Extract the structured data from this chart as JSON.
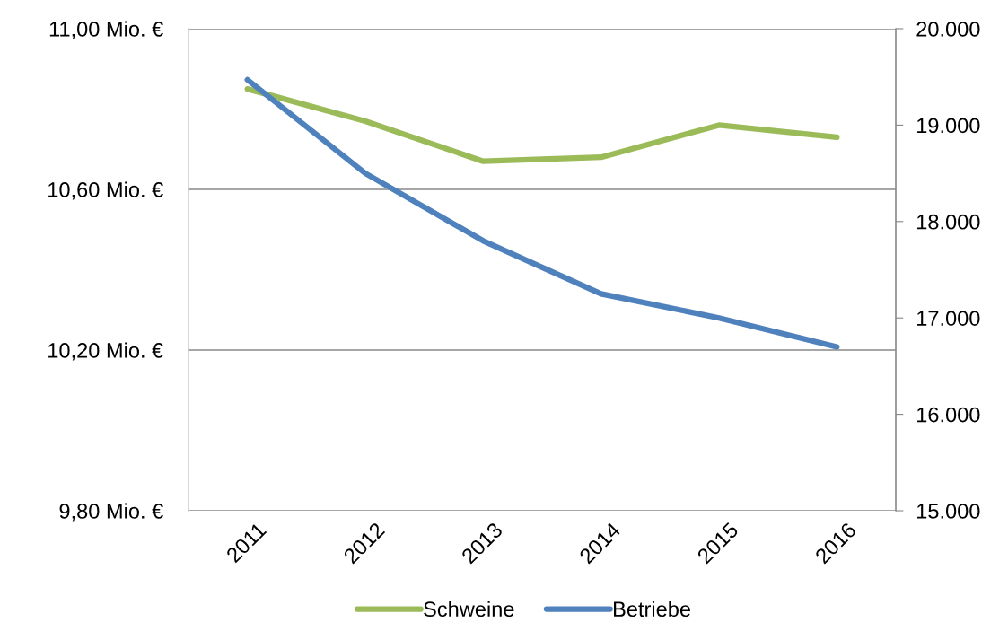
{
  "chart_data": {
    "type": "line",
    "categories": [
      "2011",
      "2012",
      "2013",
      "2014",
      "2015",
      "2016"
    ],
    "series": [
      {
        "name": "Schweine",
        "color": "#9bbb59",
        "values": [
          10.85,
          10.77,
          10.67,
          10.68,
          10.76,
          10.73
        ]
      },
      {
        "name": "Betriebe",
        "color": "#4f81bd",
        "axis": "y2",
        "values": [
          19470,
          18500,
          17800,
          17250,
          17000,
          16700
        ]
      }
    ],
    "ylim": [
      9.8,
      11.0
    ],
    "yticks": [
      {
        "value": 9.8,
        "label": "9,80 Mio. €"
      },
      {
        "value": 10.2,
        "label": "10,20 Mio. €"
      },
      {
        "value": 10.6,
        "label": "10,60 Mio. €"
      },
      {
        "value": 11.0,
        "label": "11,00 Mio. €"
      }
    ],
    "y2lim": [
      15000,
      20000
    ],
    "y2ticks": [
      {
        "value": 15000,
        "label": "15.000"
      },
      {
        "value": 16000,
        "label": "16.000"
      },
      {
        "value": 17000,
        "label": "17.000"
      },
      {
        "value": 18000,
        "label": "18.000"
      },
      {
        "value": 19000,
        "label": "19.000"
      },
      {
        "value": 20000,
        "label": "20.000"
      }
    ],
    "grid": "y",
    "legend": "bottom",
    "marker": "none",
    "line_style": "solid"
  }
}
